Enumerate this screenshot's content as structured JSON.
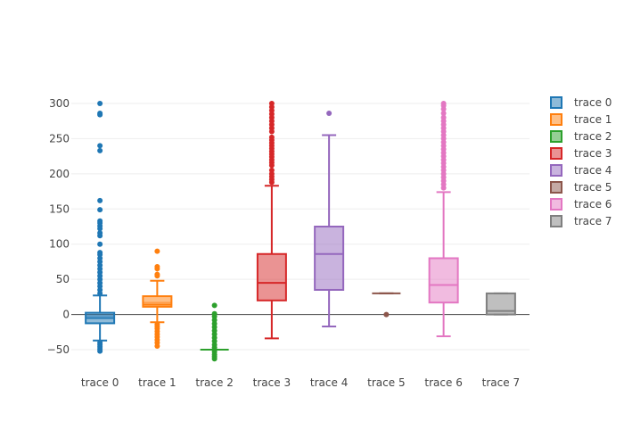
{
  "chart_data": {
    "type": "box",
    "title": "",
    "xlabel": "",
    "ylabel": "",
    "ylim": [
      -60,
      305
    ],
    "yticks": [
      -50,
      0,
      50,
      100,
      150,
      200,
      250,
      300
    ],
    "ytick_labels": [
      "−50",
      "0",
      "50",
      "100",
      "150",
      "200",
      "250",
      "300"
    ],
    "grid": true,
    "legend_position": "top-right",
    "categories": [
      "trace 0",
      "trace 1",
      "trace 2",
      "trace 3",
      "trace 4",
      "trace 5",
      "trace 6",
      "trace 7"
    ],
    "series": [
      {
        "name": "trace 0",
        "color": "#1f77b4",
        "q1": -12.5,
        "median": -5,
        "mean": -2,
        "q3": 2.5,
        "lower_fence": -37,
        "upper_fence": 27,
        "outliers": [
          300,
          286,
          284,
          240,
          233,
          162,
          149,
          133,
          130,
          126,
          122,
          116,
          112,
          100,
          88,
          85,
          80,
          75,
          70,
          65,
          60,
          55,
          50,
          45,
          40,
          35,
          30,
          -40,
          -43,
          -46,
          -49,
          -52
        ]
      },
      {
        "name": "trace 1",
        "color": "#ff7f0e",
        "q1": 11,
        "median": 14,
        "mean": 17,
        "q3": 26,
        "lower_fence": -11,
        "upper_fence": 48,
        "outliers": [
          90,
          68,
          65,
          57,
          55,
          -14,
          -17,
          -20,
          -24,
          -28,
          -32,
          -36,
          -40,
          -45
        ]
      },
      {
        "name": "trace 2",
        "color": "#2ca02c",
        "q1": -50,
        "median": -50,
        "q3": -50,
        "lower_fence": -50,
        "upper_fence": -50,
        "outliers": [
          13,
          1,
          -3,
          -8,
          -13,
          -18,
          -23,
          -28,
          -33,
          -38,
          -43,
          -47,
          -53,
          -57,
          -60,
          -63
        ]
      },
      {
        "name": "trace 3",
        "color": "#d62728",
        "q1": 20,
        "median": 45,
        "q3": 86,
        "lower_fence": -34,
        "upper_fence": 183,
        "outliers": [
          300,
          295,
          290,
          285,
          280,
          275,
          270,
          265,
          260,
          252,
          248,
          244,
          240,
          236,
          232,
          228,
          224,
          220,
          216,
          212,
          205,
          200,
          196,
          192,
          188
        ]
      },
      {
        "name": "trace 4",
        "color": "#9467bd",
        "q1": 35,
        "median": 86,
        "q3": 125,
        "lower_fence": -17,
        "upper_fence": 255,
        "outliers": [
          286
        ]
      },
      {
        "name": "trace 5",
        "color": "#8c564b",
        "q1": 30,
        "median": 30,
        "q3": 30,
        "lower_fence": 30,
        "upper_fence": 30,
        "outliers": [
          0
        ]
      },
      {
        "name": "trace 6",
        "color": "#e377c2",
        "q1": 17,
        "median": 42,
        "q3": 80,
        "lower_fence": -31,
        "upper_fence": 174,
        "outliers": [
          300,
          297,
          292,
          286,
          280,
          275,
          270,
          265,
          260,
          255,
          250,
          245,
          240,
          235,
          230,
          225,
          220,
          215,
          210,
          205,
          200,
          195,
          190,
          185,
          180
        ]
      },
      {
        "name": "trace 7",
        "color": "#7f7f7f",
        "q1": 0,
        "median": 5,
        "q3": 30,
        "lower_fence": 0,
        "upper_fence": 30,
        "outliers": []
      }
    ]
  }
}
